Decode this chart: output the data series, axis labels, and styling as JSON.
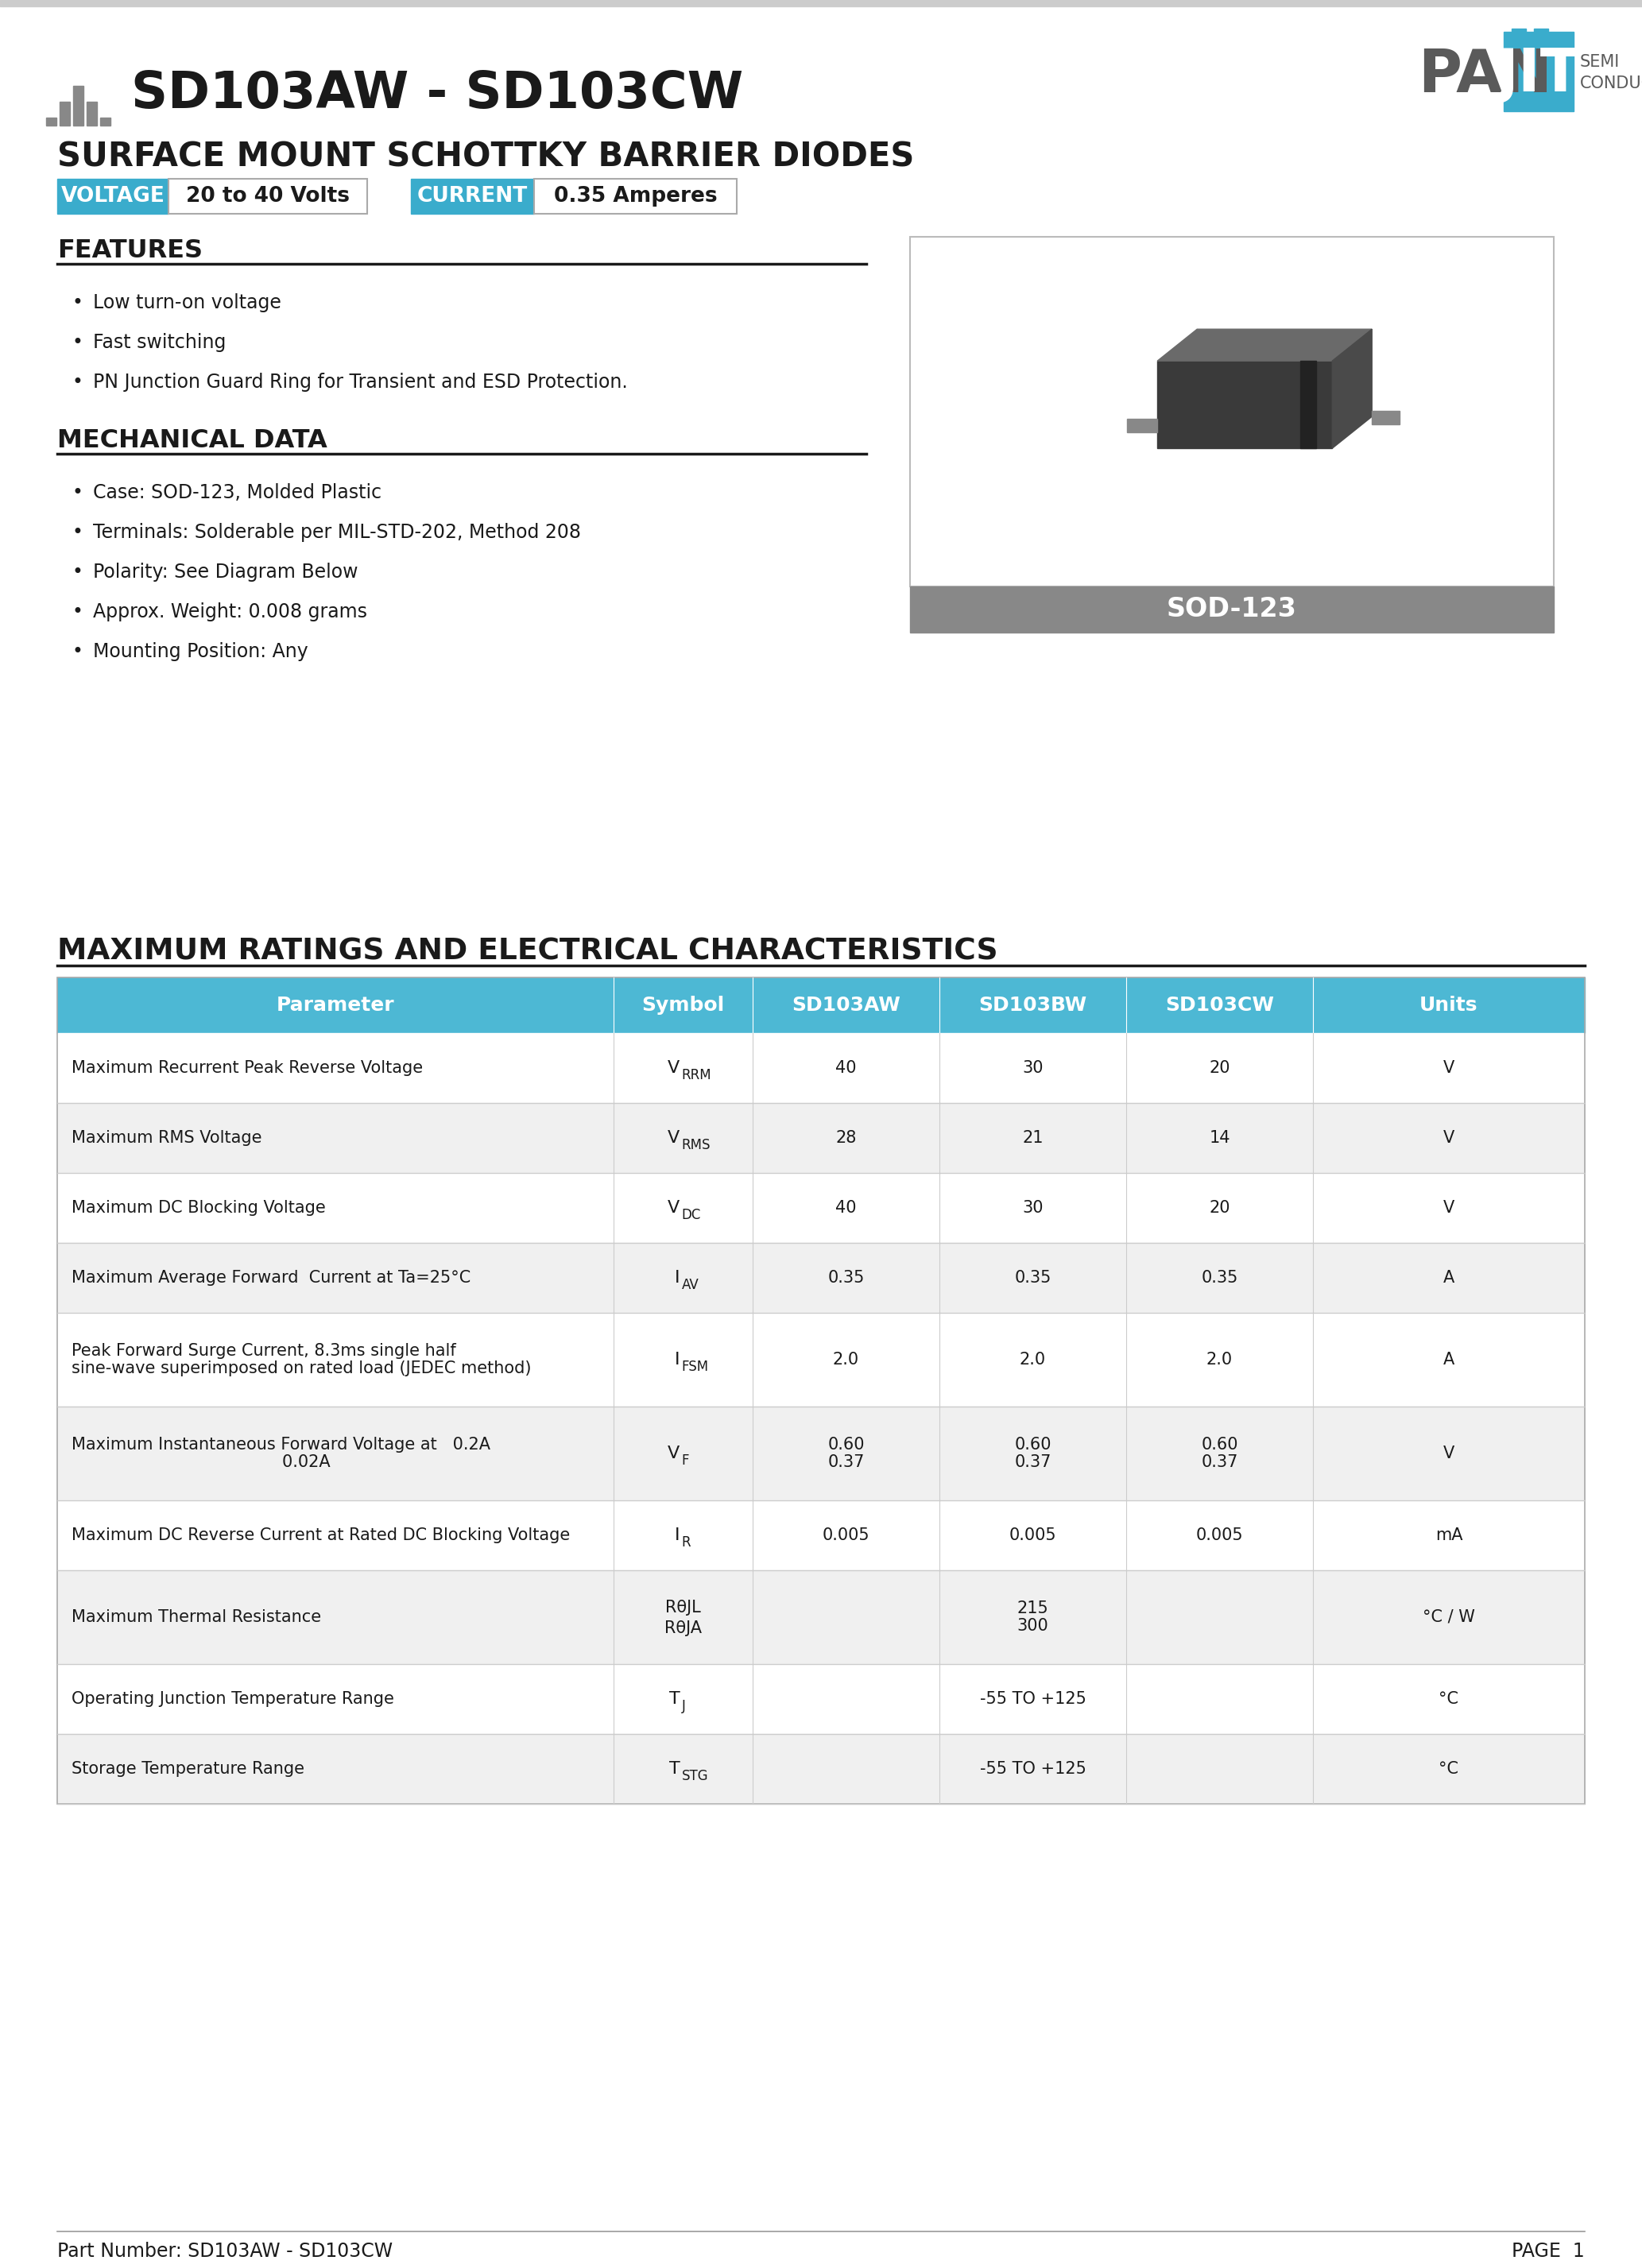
{
  "title": "SD103AW - SD103CW",
  "subtitle": "SURFACE MOUNT SCHOTTKY BARRIER DIODES",
  "voltage_label": "VOLTAGE",
  "voltage_value": "20 to 40 Volts",
  "current_label": "CURRENT",
  "current_value": "0.35 Amperes",
  "features_title": "FEATURES",
  "features": [
    "Low turn-on voltage",
    "Fast switching",
    "PN Junction Guard Ring for Transient and ESD Protection."
  ],
  "mech_title": "MECHANICAL DATA",
  "mech_items": [
    "Case: SOD-123, Molded Plastic",
    "Terminals: Solderable per MIL-STD-202, Method 208",
    "Polarity: See Diagram Below",
    "Approx. Weight: 0.008 grams",
    "Mounting Position: Any"
  ],
  "package_label": "SOD-123",
  "table_title": "MAXIMUM RATINGS AND ELECTRICAL CHARACTERISTICS",
  "table_header": [
    "Parameter",
    "Symbol",
    "SD103AW",
    "SD103BW",
    "SD103CW",
    "Units"
  ],
  "table_rows": [
    [
      "Maximum Recurrent Peak Reverse Voltage",
      "VRRM",
      "40",
      "30",
      "20",
      "V"
    ],
    [
      "Maximum RMS Voltage",
      "VRMS",
      "28",
      "21",
      "14",
      "V"
    ],
    [
      "Maximum DC Blocking Voltage",
      "VDC",
      "40",
      "30",
      "20",
      "V"
    ],
    [
      "Maximum Average Forward  Current at Ta=25°C",
      "IAV",
      "0.35",
      "0.35",
      "0.35",
      "A"
    ],
    [
      "Peak Forward Surge Current, 8.3ms single half\nsine-wave superimposed on rated load (JEDEC method)",
      "IFSM",
      "2.0",
      "2.0",
      "2.0",
      "A"
    ],
    [
      "Maximum Instantaneous Forward Voltage at   0.2A\n                                        0.02A",
      "VF",
      "0.60\n0.37",
      "0.60\n0.37",
      "0.60\n0.37",
      "V"
    ],
    [
      "Maximum DC Reverse Current at Rated DC Blocking Voltage",
      "IR",
      "0.005",
      "0.005",
      "0.005",
      "mA"
    ],
    [
      "Maximum Thermal Resistance",
      "RθJL\nRθJA",
      "",
      "215\n300",
      "",
      "°C / W"
    ],
    [
      "Operating Junction Temperature Range",
      "TJ",
      "",
      "-55 TO +125",
      "",
      "°C"
    ],
    [
      "Storage Temperature Range",
      "TSTG",
      "",
      "-55 TO +125",
      "",
      "°C"
    ]
  ],
  "symbol_subs": [
    [
      "V",
      "RRM"
    ],
    [
      "V",
      "RMS"
    ],
    [
      "V",
      "DC"
    ],
    [
      "I",
      "AV"
    ],
    [
      "I",
      "FSM"
    ],
    [
      "V",
      "F"
    ],
    [
      "I",
      "R"
    ],
    [
      "RθJL\nRθJA",
      ""
    ],
    [
      "T",
      "J"
    ],
    [
      "T",
      "STG"
    ]
  ],
  "footer_left": "Part Number: SD103AW - SD103CW",
  "footer_right": "PAGE  1",
  "table_header_bg": "#4db8d4",
  "table_alt_row_bg": "#f0f0f0",
  "table_white_row_bg": "#ffffff",
  "blue_label_bg": "#3aaccc",
  "page_bg": "#ffffff",
  "panjit_blue": "#3aaccc",
  "panjit_gray": "#5a5a5a"
}
